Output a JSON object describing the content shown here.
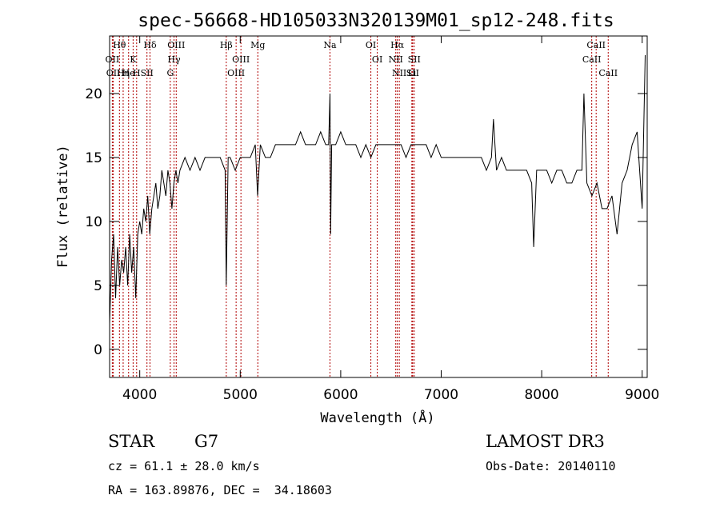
{
  "chart_data": {
    "type": "line",
    "title": "spec-56668-HD105033N320139M01_sp12-248.fits",
    "xlabel": "Wavelength (Å)",
    "ylabel": "Flux (relative)",
    "xlim": [
      3700,
      9050
    ],
    "ylim": [
      -2.2,
      24.5
    ],
    "xticks": [
      4000,
      5000,
      6000,
      7000,
      8000,
      9000
    ],
    "yticks": [
      0,
      5,
      10,
      15,
      20
    ],
    "series": [
      {
        "x": [
          3700,
          3720,
          3740,
          3760,
          3780,
          3800,
          3820,
          3840,
          3860,
          3880,
          3900,
          3920,
          3940,
          3960,
          3980,
          4000,
          4020,
          4040,
          4060,
          4080,
          4100,
          4120,
          4140,
          4160,
          4180,
          4200,
          4220,
          4240,
          4260,
          4280,
          4300,
          4320,
          4340,
          4360,
          4380,
          4400,
          4450,
          4500,
          4550,
          4600,
          4650,
          4700,
          4750,
          4800,
          4850,
          4861,
          4880,
          4900,
          4950,
          5000,
          5050,
          5100,
          5150,
          5173,
          5200,
          5250,
          5300,
          5350,
          5400,
          5450,
          5500,
          5550,
          5600,
          5650,
          5700,
          5750,
          5800,
          5850,
          5880,
          5893,
          5900,
          5910,
          5950,
          6000,
          6050,
          6100,
          6150,
          6200,
          6250,
          6300,
          6350,
          6400,
          6450,
          6500,
          6550,
          6563,
          6600,
          6650,
          6700,
          6750,
          6800,
          6850,
          6900,
          6950,
          7000,
          7050,
          7100,
          7150,
          7200,
          7250,
          7300,
          7350,
          7400,
          7450,
          7500,
          7520,
          7550,
          7600,
          7650,
          7700,
          7750,
          7800,
          7850,
          7900,
          7920,
          7950,
          8000,
          8050,
          8100,
          8150,
          8200,
          8250,
          8300,
          8350,
          8400,
          8420,
          8450,
          8500,
          8550,
          8600,
          8650,
          8700,
          8750,
          8800,
          8850,
          8900,
          8950,
          9000,
          9030
        ],
        "y": [
          2,
          7,
          9,
          4,
          8,
          5,
          7,
          6,
          8,
          5,
          9,
          6,
          8,
          4,
          9,
          10,
          9,
          11,
          10,
          12,
          9,
          11,
          12,
          13,
          11,
          12,
          14,
          13,
          12,
          14,
          13,
          11,
          13,
          14,
          13,
          14,
          15,
          14,
          15,
          14,
          15,
          15,
          15,
          15,
          14,
          5,
          15,
          15,
          14,
          15,
          15,
          15,
          16,
          12,
          16,
          15,
          15,
          16,
          16,
          16,
          16,
          16,
          17,
          16,
          16,
          16,
          17,
          16,
          16,
          20,
          9,
          16,
          16,
          17,
          16,
          16,
          16,
          15,
          16,
          15,
          16,
          16,
          16,
          16,
          16,
          16,
          16,
          15,
          16,
          16,
          16,
          16,
          15,
          16,
          15,
          15,
          15,
          15,
          15,
          15,
          15,
          15,
          15,
          14,
          15,
          18,
          14,
          15,
          14,
          14,
          14,
          14,
          14,
          13,
          8,
          14,
          14,
          14,
          13,
          14,
          14,
          13,
          13,
          14,
          14,
          20,
          13,
          12,
          13,
          11,
          11,
          12,
          9,
          13,
          14,
          16,
          17,
          11,
          23
        ]
      }
    ],
    "line_markers": [
      {
        "name": "Hθ",
        "wave": 3798
      },
      {
        "name": "OII",
        "wave": 3727
      },
      {
        "name": "OII",
        "wave": 3737
      },
      {
        "name": "He",
        "wave": 3889
      },
      {
        "name": "Hη",
        "wave": 3835
      },
      {
        "name": "K",
        "wave": 3934
      },
      {
        "name": "H",
        "wave": 3969
      },
      {
        "name": "Hδ",
        "wave": 4102
      },
      {
        "name": "SII",
        "wave": 4072
      },
      {
        "name": "OIII",
        "wave": 4363
      },
      {
        "name": "Hγ",
        "wave": 4341
      },
      {
        "name": "G",
        "wave": 4304
      },
      {
        "name": "Hβ",
        "wave": 4861
      },
      {
        "name": "OIII",
        "wave": 5007
      },
      {
        "name": "OIII",
        "wave": 4959
      },
      {
        "name": "Mg",
        "wave": 5175
      },
      {
        "name": "Na",
        "wave": 5893
      },
      {
        "name": "OI",
        "wave": 6300
      },
      {
        "name": "OI",
        "wave": 6364
      },
      {
        "name": "Hα",
        "wave": 6563
      },
      {
        "name": "NII",
        "wave": 6548
      },
      {
        "name": "NII",
        "wave": 6583
      },
      {
        "name": "SII",
        "wave": 6716
      },
      {
        "name": "Li",
        "wave": 6708
      },
      {
        "name": "SII",
        "wave": 6731
      },
      {
        "name": "CaII",
        "wave": 8542
      },
      {
        "name": "CaII",
        "wave": 8498
      },
      {
        "name": "CaII",
        "wave": 8662
      }
    ]
  },
  "info": {
    "class": "STAR",
    "subclass": "G7",
    "survey": "LAMOST DR3",
    "cz": "cz = 61.1 ± 28.0 km/s",
    "obs_date": "Obs-Date: 20140110",
    "coords": "RA = 163.89876, DEC =  34.18603"
  }
}
